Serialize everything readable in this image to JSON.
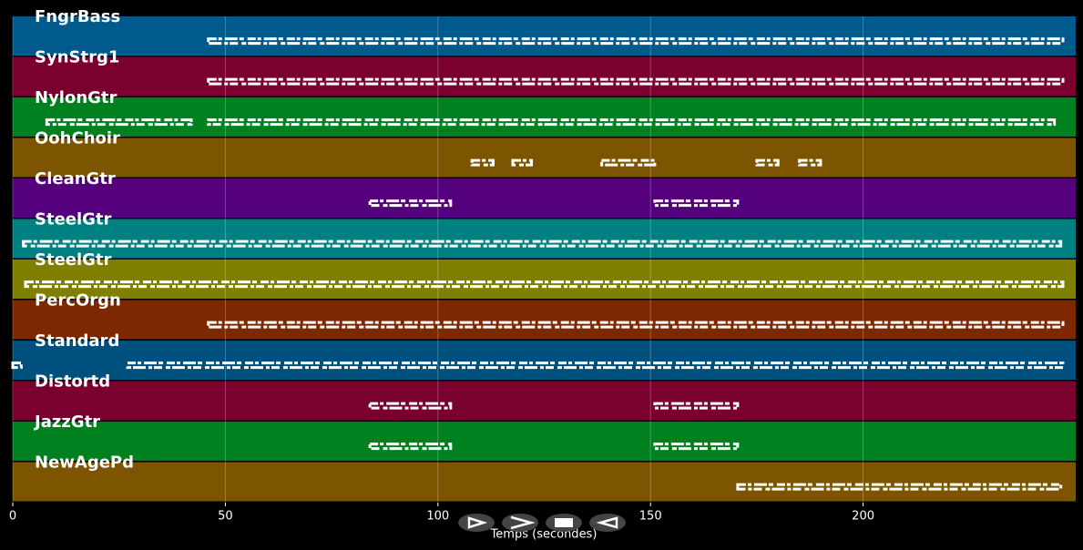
{
  "chart_data": {
    "type": "track",
    "x_label": "Temps (secondes)",
    "xlim": [
      0,
      250
    ],
    "xticks": [
      0,
      50,
      100,
      150,
      200
    ],
    "grid": true,
    "note_color": "#ffffff",
    "tracks": [
      {
        "name": "FngrBass",
        "color": "#005a8c",
        "spans": [
          [
            46,
            247
          ]
        ]
      },
      {
        "name": "SynStrg1",
        "color": "#7a0030",
        "spans": [
          [
            46,
            247
          ]
        ]
      },
      {
        "name": "NylonGtr",
        "color": "#00801f",
        "spans": [
          [
            8,
            42
          ],
          [
            46,
            245
          ]
        ]
      },
      {
        "name": "OohChoir",
        "color": "#7d5500",
        "spans": [
          [
            108,
            113
          ],
          [
            117.6,
            122
          ],
          [
            138.5,
            151
          ],
          [
            175,
            180
          ],
          [
            185,
            190
          ]
        ]
      },
      {
        "name": "CleanGtr",
        "color": "#55007d",
        "spans": [
          [
            84,
            103
          ],
          [
            151,
            170.5
          ]
        ]
      },
      {
        "name": "SteelGtr",
        "color": "#008080",
        "spans": [
          [
            2.5,
            246.5
          ]
        ]
      },
      {
        "name": "SteelGtr",
        "color": "#808000",
        "spans": [
          [
            3,
            247
          ]
        ]
      },
      {
        "name": "PercOrgn",
        "color": "#7d2800",
        "spans": [
          [
            46,
            247
          ]
        ]
      },
      {
        "name": "Standard",
        "color": "#00507d",
        "spans": [
          [
            0,
            2
          ],
          [
            27,
            247
          ]
        ]
      },
      {
        "name": "Distortd",
        "color": "#7a0030",
        "spans": [
          [
            84,
            103
          ],
          [
            151,
            170.5
          ]
        ]
      },
      {
        "name": "JazzGtr",
        "color": "#00801f",
        "spans": [
          [
            84,
            103
          ],
          [
            151,
            170.5
          ]
        ]
      },
      {
        "name": "NewAgePd",
        "color": "#7d5500",
        "spans": [
          [
            170.5,
            246.5
          ]
        ]
      }
    ]
  }
}
